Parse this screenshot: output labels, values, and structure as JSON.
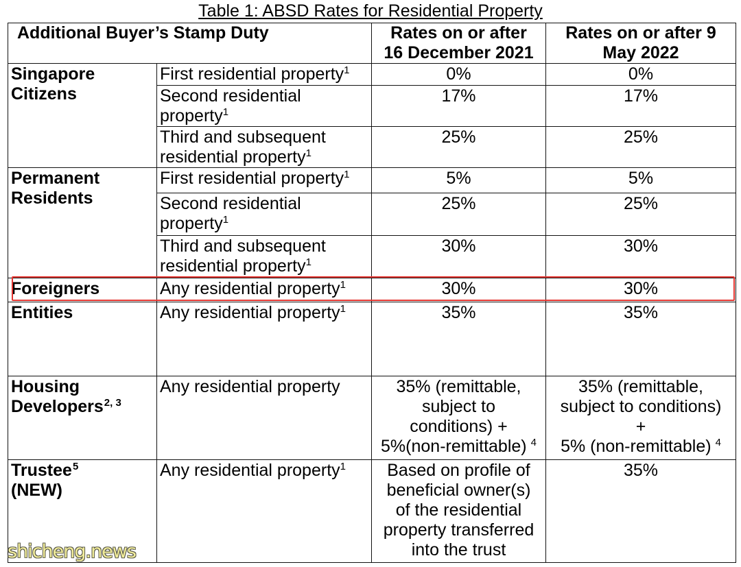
{
  "title": "Table 1: ABSD Rates for Residential Property",
  "header": {
    "stamp_duty": "Additional Buyer’s Stamp Duty",
    "rate_2021": "Rates on or after\n16 December 2021",
    "rate_2022": "Rates on or after 9\nMay 2022"
  },
  "groups": [
    {
      "name": "Singapore\nCitizens",
      "rows": [
        {
          "property": "First residential property",
          "property_note": "1",
          "rate_2021": "0%",
          "rate_2022": "0%"
        },
        {
          "property": "Second residential\nproperty",
          "property_note": "1",
          "rate_2021": "17%",
          "rate_2022": "17%"
        },
        {
          "property": "Third and subsequent\nresidential property",
          "property_note": "1",
          "rate_2021": "25%",
          "rate_2022": "25%"
        }
      ]
    },
    {
      "name": "Permanent\nResidents",
      "rows": [
        {
          "property": "First residential property",
          "property_note": "1",
          "rate_2021": "5%",
          "rate_2022": "5%"
        },
        {
          "property": "Second residential\nproperty",
          "property_note": "1",
          "rate_2021": "25%",
          "rate_2022": "25%"
        },
        {
          "property": "Third and subsequent\nresidential property",
          "property_note": "1",
          "rate_2021": "30%",
          "rate_2022": "30%"
        }
      ]
    },
    {
      "name": "Foreigners",
      "rows": [
        {
          "property": "Any residential property",
          "property_note": "1",
          "rate_2021": "30%",
          "rate_2022": "30%"
        }
      ]
    },
    {
      "name": "Entities",
      "rows": [
        {
          "property": "Any residential property",
          "property_note": "1",
          "rate_2021": "35%",
          "rate_2022": "35%"
        }
      ]
    },
    {
      "name": "Housing\nDevelopers",
      "name_note": "2, 3",
      "rows": [
        {
          "property": "Any residential property",
          "rate_2021": "35% (remittable,\nsubject to\nconditions) +\n5%(non-remittable)",
          "rate_2021_note": "4",
          "rate_2022": "35% (remittable,\nsubject to conditions)\n+\n5% (non-remittable)",
          "rate_2022_note": "4"
        }
      ]
    },
    {
      "name": "Trustee",
      "name_note": "5",
      "name_tag": "(NEW)",
      "rows": [
        {
          "property": "Any residential property",
          "property_note": "1",
          "rate_2021": "Based on profile of\nbeneficial owner(s)\nof the residential\nproperty transferred\ninto the trust",
          "rate_2022": "35%"
        }
      ]
    }
  ],
  "watermark": "shicheng.news",
  "colors": {
    "highlight_border": "#e3342f",
    "watermark_text": "#f3ee9c"
  }
}
